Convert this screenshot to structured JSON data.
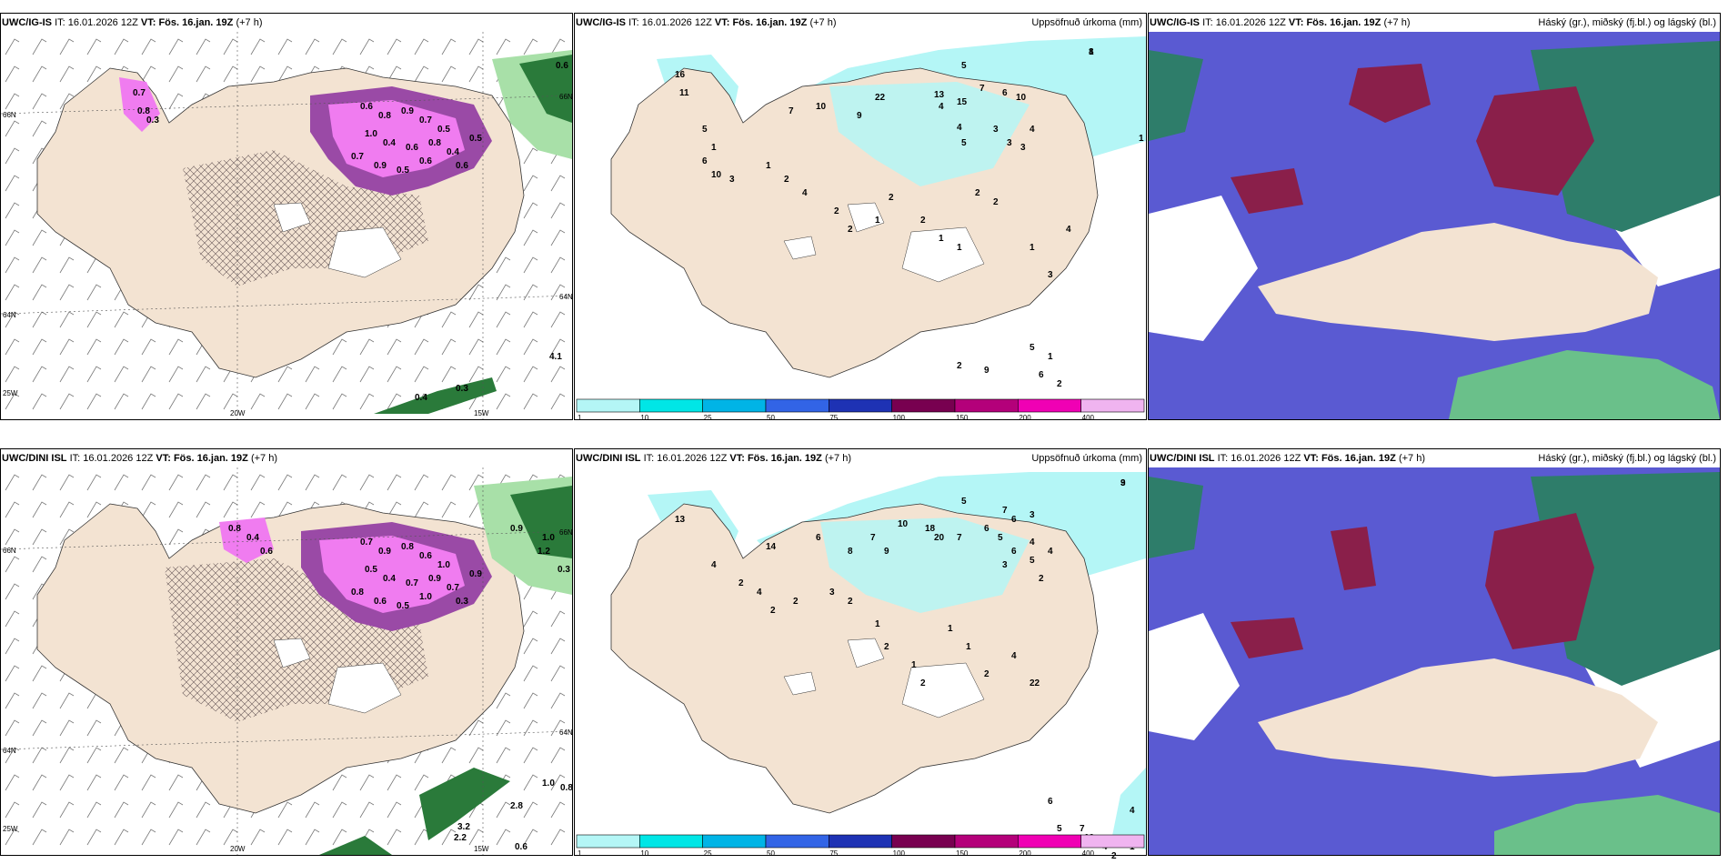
{
  "colors": {
    "land": "#f3e3d2",
    "sea": "#ffffff",
    "precip_light": "#b4f6f6",
    "snow_pink": "#f07cf0",
    "snow_purple": "#9a4aa6",
    "green_dark": "#2a7a3a",
    "green_light": "#a8e0a8",
    "cloud_blue": "#5a5ad2",
    "cloud_red": "#8a1f4a",
    "cloud_teal": "#2e7d6a"
  },
  "panels": [
    {
      "id": "ig-wind",
      "model": "UWC/IG-IS",
      "it_label": "IT:",
      "it_value": "16.01.2026 12Z",
      "vt_label": "VT:",
      "vt_value": "Fös. 16.jan. 19Z",
      "lead": "(+7 h)",
      "right_title": "",
      "axis": {
        "lon_20": "20W",
        "lon_15": "15W",
        "lat_66_l": "66N",
        "lat_66_r": "66N",
        "lat_64_l": "64N",
        "lat_64_r": "64N",
        "lon_25": "25W"
      },
      "snow_labels": [
        "0.6",
        "0.8",
        "0.9",
        "0.7",
        "0.5",
        "1.0",
        "0.4",
        "0.6",
        "0.8",
        "0.7",
        "0.9",
        "0.5",
        "0.6",
        "0.4",
        "0.7",
        "0.8",
        "0.3",
        "0.5",
        "0.6"
      ],
      "sea_labels": [
        "0.4",
        "0.3",
        "4.1",
        "0.6"
      ]
    },
    {
      "id": "ig-precip",
      "model": "UWC/IG-IS",
      "it_label": "IT:",
      "it_value": "16.01.2026 12Z",
      "vt_label": "VT:",
      "vt_value": "Fös. 16.jan. 19Z",
      "lead": "(+7 h)",
      "right_title": "Uppsöfnuð úrkoma (mm)",
      "precip_labels": [
        "8",
        "5",
        "13",
        "7",
        "6",
        "10",
        "4",
        "15",
        "16",
        "11",
        "7",
        "10",
        "9",
        "22",
        "4",
        "5",
        "3",
        "3",
        "3",
        "4",
        "5",
        "1",
        "6",
        "10",
        "3",
        "1",
        "2",
        "4",
        "2",
        "2",
        "1",
        "2",
        "2",
        "1",
        "1",
        "2",
        "2",
        "1",
        "3",
        "4",
        "1",
        "2",
        "9",
        "5",
        "6",
        "1",
        "2",
        "1"
      ],
      "colorbar_ticks": [
        "1",
        "10",
        "25",
        "50",
        "75",
        "100",
        "150",
        "200",
        "400"
      ]
    },
    {
      "id": "ig-cloud",
      "model": "UWC/IG-IS",
      "it_label": "IT:",
      "it_value": "16.01.2026 12Z",
      "vt_label": "VT:",
      "vt_value": "Fös. 16.jan. 19Z",
      "lead": "(+7 h)",
      "right_title": "Háský (gr.), miðský (fj.bl.) og lágský (bl.)"
    },
    {
      "id": "dini-wind",
      "model": "UWC/DINI ISL",
      "it_label": "IT:",
      "it_value": "16.01.2026 12Z",
      "vt_label": "VT:",
      "vt_value": "Fös. 16.jan. 19Z",
      "lead": "(+7 h)",
      "right_title": "",
      "axis": {
        "lon_20": "20W",
        "lon_15": "15W",
        "lat_66_l": "66N",
        "lat_66_r": "66N",
        "lat_64_l": "64N",
        "lat_64_r": "64N",
        "lon_25": "25W"
      },
      "snow_labels": [
        "0.7",
        "0.9",
        "0.8",
        "0.6",
        "1.0",
        "0.5",
        "0.4",
        "0.7",
        "0.9",
        "0.8",
        "0.6",
        "0.5",
        "1.0",
        "0.7",
        "0.8",
        "0.4",
        "0.6",
        "0.9",
        "0.3"
      ],
      "sea_labels": [
        "1.0",
        "1.2",
        "0.9",
        "2.8",
        "1.0",
        "0.8",
        "3.2",
        "2.2",
        "0.6",
        "0.3"
      ]
    },
    {
      "id": "dini-precip",
      "model": "UWC/DINI ISL",
      "it_label": "IT:",
      "it_value": "16.01.2026 12Z",
      "vt_label": "VT:",
      "vt_value": "Fös. 16.jan. 19Z",
      "lead": "(+7 h)",
      "right_title": "Uppsöfnuð úrkoma (mm)",
      "precip_labels": [
        "9",
        "5",
        "7",
        "6",
        "3",
        "13",
        "14",
        "6",
        "8",
        "7",
        "9",
        "10",
        "4",
        "18",
        "20",
        "7",
        "6",
        "5",
        "6",
        "4",
        "4",
        "3",
        "2",
        "5",
        "2",
        "4",
        "2",
        "2",
        "3",
        "2",
        "1",
        "2",
        "1",
        "2",
        "1",
        "1",
        "2",
        "4",
        "22",
        "4",
        "6",
        "5",
        "7",
        "10",
        "4",
        "2",
        "1",
        "3"
      ],
      "colorbar_ticks": [
        "1",
        "10",
        "25",
        "50",
        "75",
        "100",
        "150",
        "200",
        "400"
      ]
    },
    {
      "id": "dini-cloud",
      "model": "UWC/DINI ISL",
      "it_label": "IT:",
      "it_value": "16.01.2026 12Z",
      "vt_label": "VT:",
      "vt_value": "Fös. 16.jan. 19Z",
      "lead": "(+7 h)",
      "right_title": "Háský (gr.), miðský (fj.bl.) og lágský (bl.)"
    }
  ],
  "colorbar_colors": [
    "#b4f6f6",
    "#00e6e6",
    "#00b4e6",
    "#3264e6",
    "#1e32b4",
    "#780050",
    "#b4007a",
    "#f000b4",
    "#f0b4f0"
  ]
}
